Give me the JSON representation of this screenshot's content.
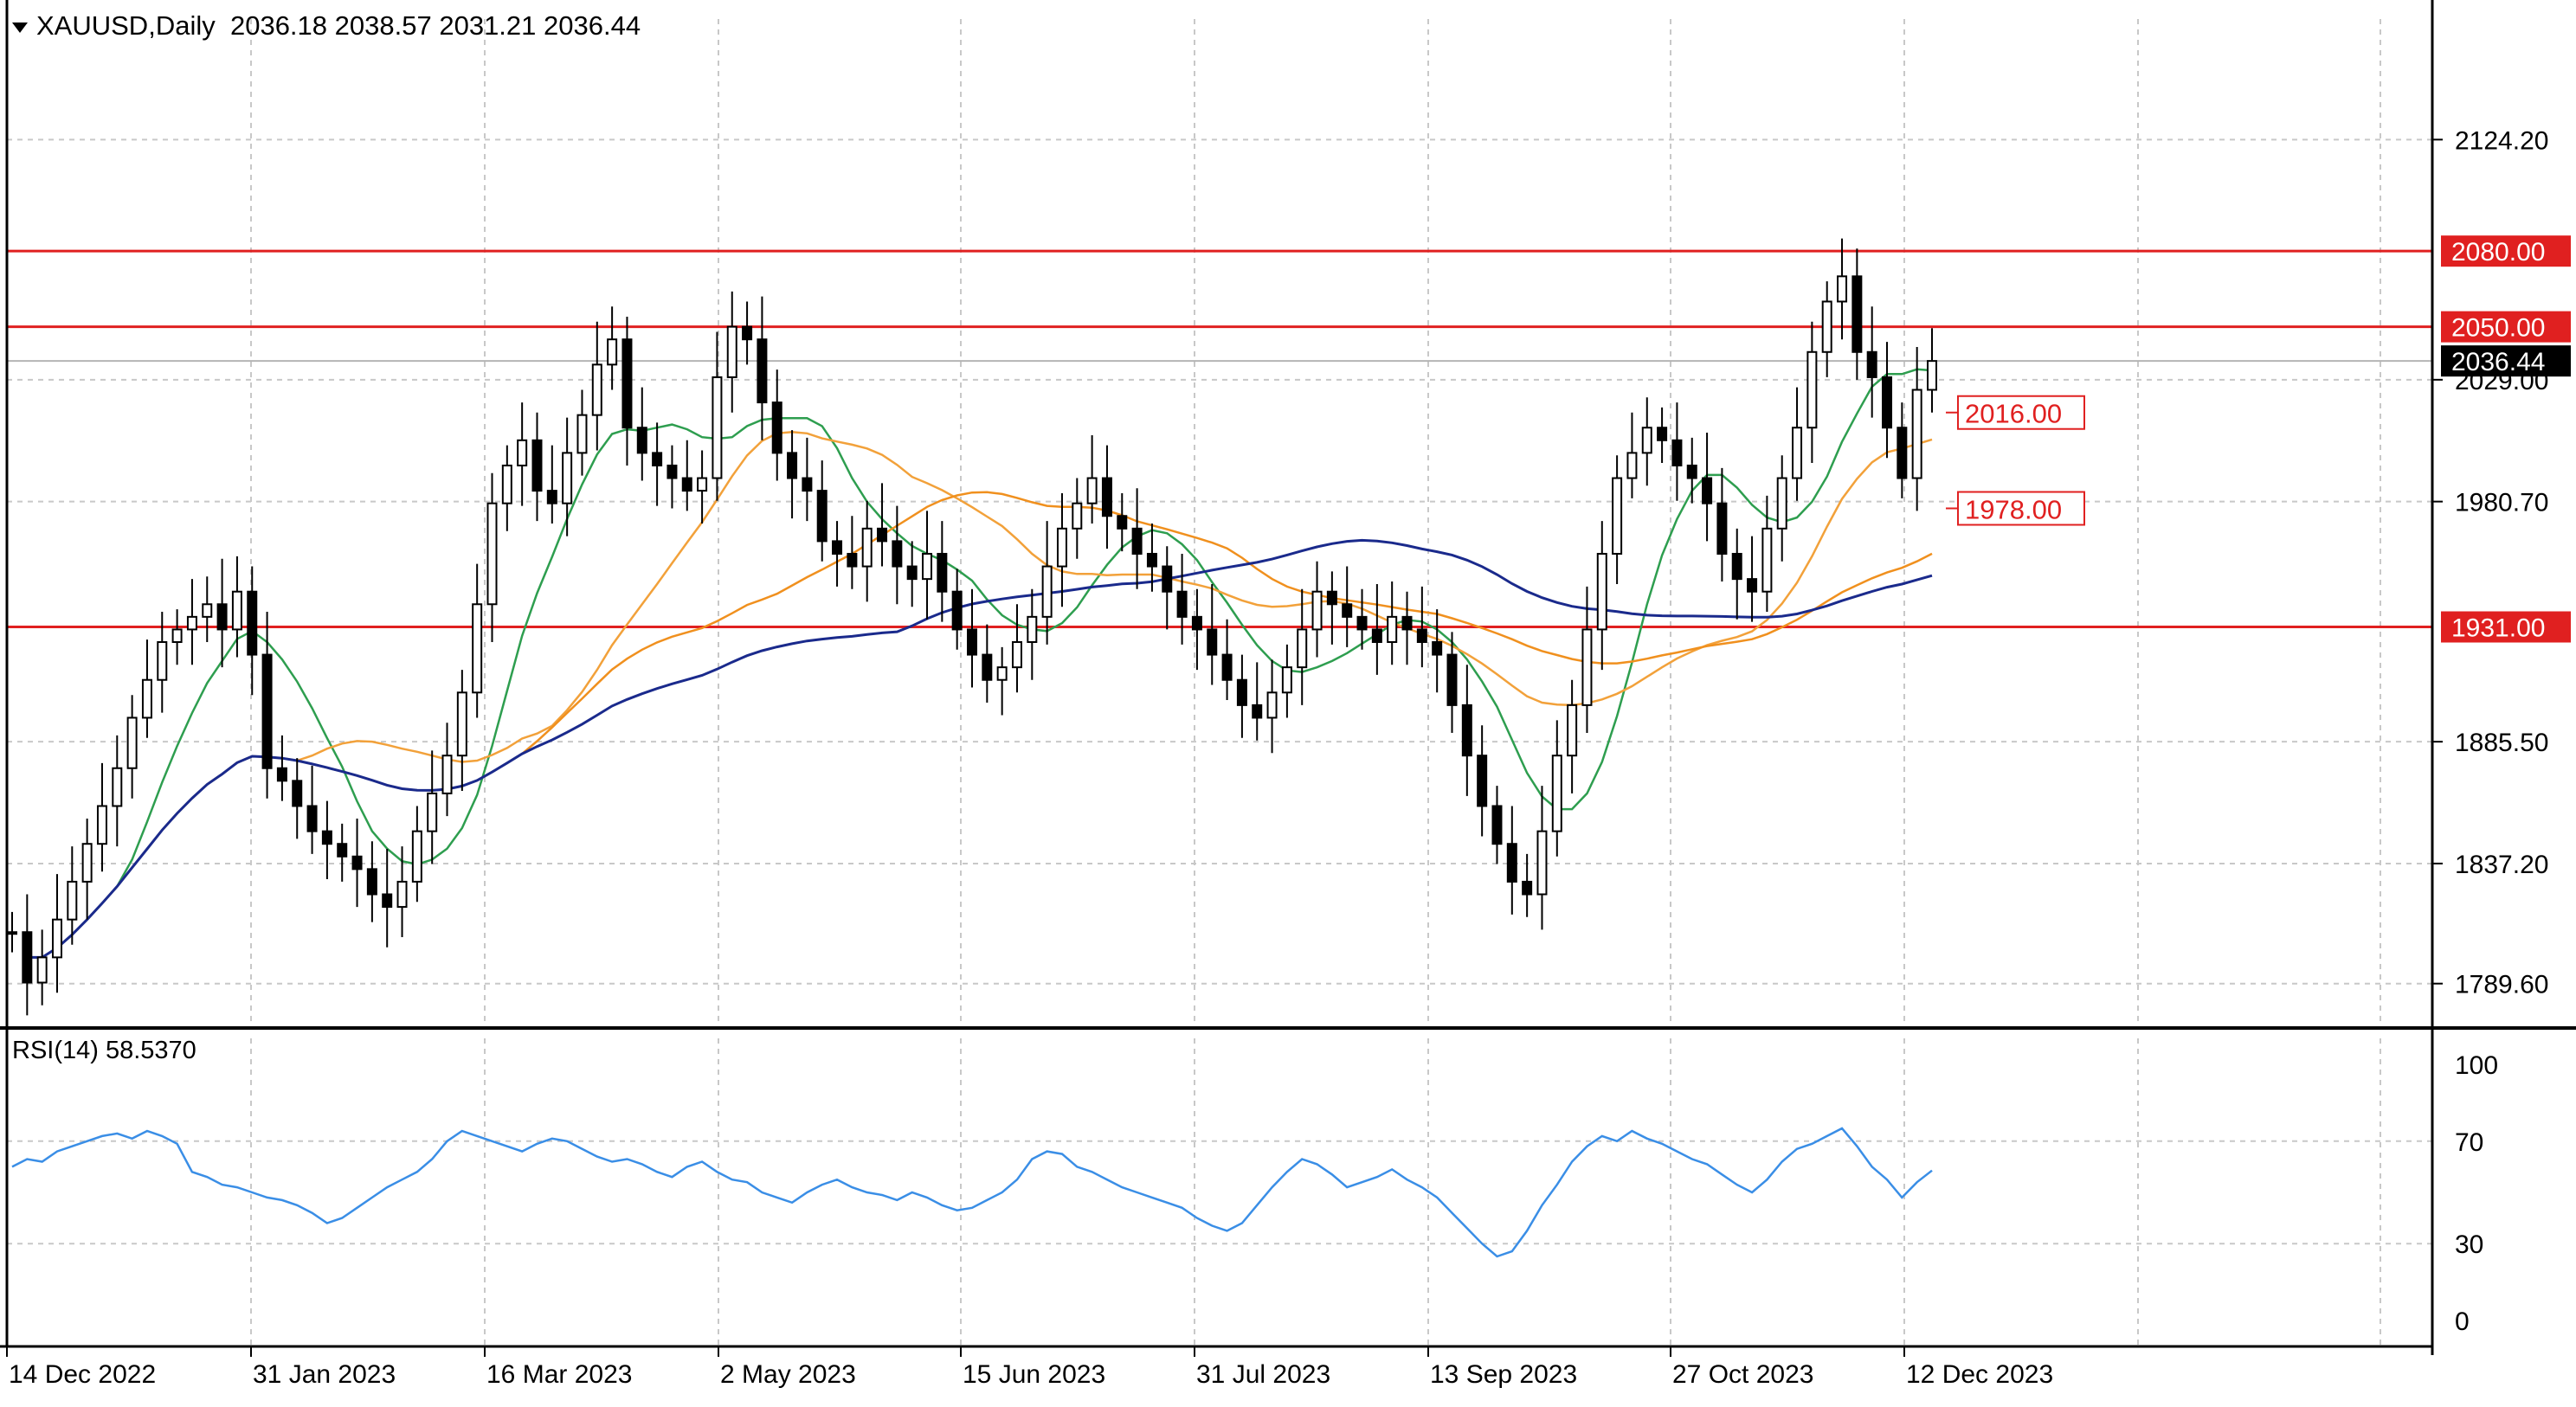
{
  "header": {
    "symbol": "XAUUSD",
    "timeframe": "Daily",
    "open": "2036.18",
    "high": "2038.57",
    "low": "2031.21",
    "close": "2036.44"
  },
  "rsi_panel": {
    "label": "RSI(14)",
    "value": "58.5370",
    "levels": [
      "100",
      "70",
      "30",
      "0"
    ]
  },
  "colors": {
    "candle": "#000000",
    "ma_short": "#2e9e4f",
    "ma_mid": "#f2a13a",
    "ma_long_orange": "#f0901e",
    "ma_long_navy": "#1a2a8c",
    "hline": "#e02020",
    "rsi": "#3a8ee6",
    "grid": "#c8c8c8"
  },
  "chart_data": [
    {
      "type": "candlestick",
      "title": "XAUUSD,Daily",
      "x_ticks": [
        "14 Dec 2022",
        "31 Jan 2023",
        "16 Mar 2023",
        "2 May 2023",
        "15 Jun 2023",
        "31 Jul 2023",
        "13 Sep 2023",
        "27 Oct 2023",
        "12 Dec 2023"
      ],
      "y_ticks": [
        "2124.20",
        "2029.00",
        "1980.70",
        "1885.50",
        "1837.20",
        "1789.60"
      ],
      "ylim": [
        1772,
        2172
      ],
      "current_price": "2036.44",
      "horizontal_levels": [
        {
          "label": "2080.00",
          "value": 2080,
          "style": "filled"
        },
        {
          "label": "2050.00",
          "value": 2050,
          "style": "filled"
        },
        {
          "label": "1931.00",
          "value": 1931,
          "style": "filled"
        }
      ],
      "annotations": [
        {
          "label": "2016.00",
          "value": 2016
        },
        {
          "label": "1978.00",
          "value": 1978
        }
      ],
      "close_series": [
        1810,
        1790,
        1800,
        1815,
        1830,
        1845,
        1860,
        1875,
        1895,
        1910,
        1925,
        1930,
        1935,
        1940,
        1930,
        1945,
        1920,
        1875,
        1870,
        1860,
        1850,
        1845,
        1840,
        1835,
        1825,
        1820,
        1830,
        1850,
        1865,
        1880,
        1905,
        1940,
        1980,
        1995,
        2005,
        1985,
        1980,
        2000,
        2015,
        2035,
        2045,
        2010,
        2000,
        1995,
        1990,
        1985,
        1990,
        2030,
        2050,
        2045,
        2020,
        2000,
        1990,
        1985,
        1965,
        1960,
        1955,
        1970,
        1965,
        1955,
        1950,
        1960,
        1945,
        1930,
        1920,
        1910,
        1915,
        1925,
        1935,
        1955,
        1970,
        1980,
        1990,
        1975,
        1970,
        1960,
        1955,
        1945,
        1935,
        1930,
        1920,
        1910,
        1900,
        1895,
        1905,
        1915,
        1930,
        1945,
        1940,
        1935,
        1930,
        1925,
        1935,
        1930,
        1925,
        1920,
        1900,
        1880,
        1860,
        1845,
        1830,
        1825,
        1850,
        1880,
        1900,
        1930,
        1960,
        1990,
        2000,
        2010,
        2005,
        1995,
        1990,
        1980,
        1960,
        1950,
        1945,
        1970,
        1990,
        2010,
        2040,
        2060,
        2070,
        2040,
        2030,
        2010,
        1990,
        2025,
        2036.44
      ],
      "rsi_series": [
        60,
        63,
        62,
        66,
        68,
        70,
        72,
        73,
        71,
        74,
        72,
        69,
        58,
        56,
        53,
        52,
        50,
        48,
        47,
        45,
        42,
        38,
        40,
        44,
        48,
        52,
        55,
        58,
        63,
        70,
        74,
        72,
        70,
        68,
        66,
        69,
        71,
        70,
        67,
        64,
        62,
        63,
        61,
        58,
        56,
        60,
        62,
        58,
        55,
        54,
        50,
        48,
        46,
        50,
        53,
        55,
        52,
        50,
        49,
        47,
        50,
        48,
        45,
        43,
        44,
        47,
        50,
        55,
        63,
        66,
        65,
        60,
        58,
        55,
        52,
        50,
        48,
        46,
        44,
        40,
        37,
        35,
        38,
        45,
        52,
        58,
        63,
        61,
        57,
        52,
        54,
        56,
        59,
        55,
        52,
        48,
        42,
        36,
        30,
        25,
        27,
        35,
        45,
        53,
        62,
        68,
        72,
        70,
        74,
        71,
        69,
        66,
        63,
        61,
        57,
        53,
        50,
        55,
        62,
        67,
        69,
        72,
        75,
        68,
        60,
        55,
        48,
        54,
        58.537
      ]
    }
  ]
}
